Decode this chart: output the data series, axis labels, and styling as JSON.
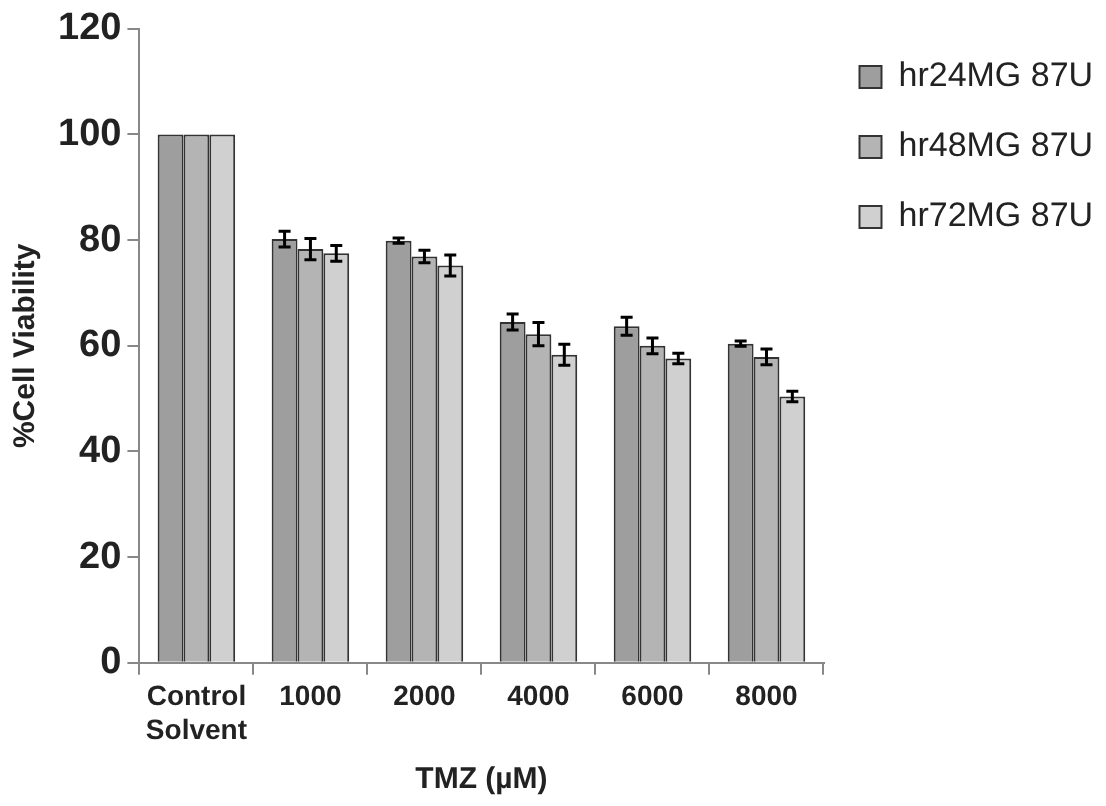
{
  "chart_data": {
    "type": "bar",
    "xlabel": "TMZ (µM)",
    "ylabel": "%Cell Viability",
    "categories": [
      "Control\nSolvent",
      "1000",
      "2000",
      "4000",
      "6000",
      "8000"
    ],
    "series": [
      {
        "name": "hr24MG 87U",
        "color": "#9e9e9e",
        "values": [
          100,
          80.2,
          79.9,
          64.5,
          63.7,
          60.4
        ],
        "errors": [
          null,
          1.5,
          0.5,
          1.5,
          1.7,
          0.5
        ]
      },
      {
        "name": "hr48MG 87U",
        "color": "#b4b4b4",
        "values": [
          100,
          78.3,
          76.9,
          62.2,
          60,
          57.9
        ],
        "errors": [
          null,
          2,
          1.2,
          2.2,
          1.5,
          1.5
        ]
      },
      {
        "name": "hr72MG 87U",
        "color": "#d0d0d0",
        "values": [
          100,
          77.5,
          75.2,
          58.3,
          57.6,
          50.4
        ],
        "errors": [
          null,
          1.5,
          2,
          2,
          1,
          1
        ]
      }
    ],
    "ylim": [
      0,
      120
    ],
    "yticks": [
      0,
      20,
      40,
      60,
      80,
      100,
      120
    ],
    "grid": false,
    "legend": "top right"
  }
}
